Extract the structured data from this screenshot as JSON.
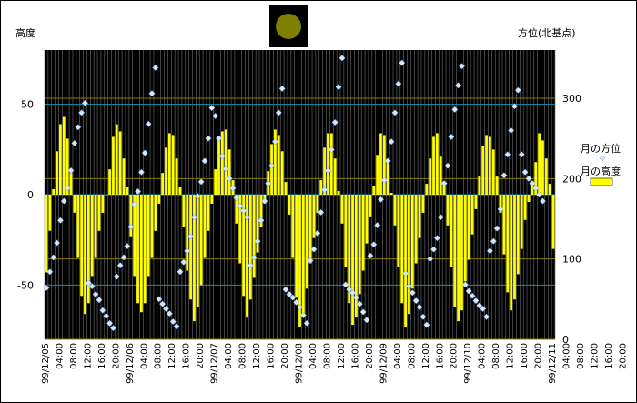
{
  "chart_data": {
    "type": "bar+scatter",
    "ylabel_left": "高度",
    "ylabel_right": "方位(北基点)",
    "left_ticks": [
      "50",
      "0",
      "-50"
    ],
    "right_ticks": [
      "300",
      "200",
      "100",
      "0"
    ],
    "ylim_left": [
      -80,
      80
    ],
    "ylim_right": [
      0,
      360
    ],
    "legend_placement": "right",
    "series": [
      {
        "name": "月の方位",
        "kind": "scatter",
        "color": "#cfe7ff",
        "axis": "right",
        "values": [
          64,
          84,
          102,
          120,
          148,
          172,
          188,
          210,
          244,
          264,
          282,
          294,
          70,
          66,
          56,
          49,
          36,
          29,
          20,
          14,
          78,
          92,
          102,
          116,
          140,
          168,
          184,
          208,
          232,
          268,
          306,
          338,
          50,
          44,
          38,
          32,
          22,
          16,
          84,
          96,
          110,
          128,
          152,
          178,
          196,
          222,
          250,
          288,
          278,
          250,
          228,
          212,
          200,
          188,
          176,
          166,
          160,
          152,
          92,
          102,
          122,
          148,
          172,
          194,
          216,
          246,
          282,
          312,
          62,
          56,
          52,
          46,
          40,
          30,
          20,
          98,
          112,
          132,
          158,
          186,
          210,
          236,
          270,
          314,
          350,
          68,
          62,
          58,
          52,
          44,
          34,
          24,
          104,
          118,
          142,
          174,
          198,
          222,
          246,
          282,
          318,
          344,
          82,
          66,
          58,
          48,
          40,
          28,
          18,
          100,
          112,
          126,
          152,
          194,
          216,
          252,
          286,
          316,
          340,
          68,
          60,
          54,
          48,
          42,
          38,
          28,
          110,
          122,
          138,
          162,
          204,
          230,
          260,
          290,
          310,
          230,
          208,
          200,
          194,
          188,
          180,
          172
        ]
      },
      {
        "name": "月の高度",
        "kind": "bar",
        "color": "#ffff00",
        "axis": "left",
        "values": [
          -43,
          -20,
          3,
          24,
          39,
          43,
          31,
          12,
          -10,
          -35,
          -56,
          -66,
          -60,
          -45,
          -35,
          -20,
          -10,
          0,
          14,
          32,
          39,
          35,
          20,
          4,
          -23,
          -45,
          -60,
          -65,
          -60,
          -45,
          -35,
          -20,
          -5,
          12,
          26,
          34,
          33,
          20,
          4,
          -18,
          -42,
          -58,
          -70,
          -62,
          -50,
          -35,
          -20,
          -5,
          14,
          30,
          35,
          36,
          25,
          8,
          -16,
          -38,
          -56,
          -68,
          -58,
          -46,
          -32,
          -18,
          -5,
          13,
          28,
          36,
          33,
          24,
          7,
          -11,
          -35,
          -57,
          -73,
          -66,
          -52,
          -38,
          -24,
          -10,
          8,
          26,
          34,
          34,
          20,
          2,
          -16,
          -40,
          -60,
          -72,
          -68,
          -55,
          -42,
          -27,
          -12,
          5,
          22,
          34,
          33,
          18,
          1,
          -17,
          -40,
          -60,
          -73,
          -66,
          -52,
          -38,
          -24,
          -10,
          6,
          20,
          32,
          34,
          21,
          5,
          -17,
          -40,
          -62,
          -70,
          -64,
          -48,
          -36,
          -22,
          -8,
          10,
          27,
          33,
          32,
          25,
          10,
          -10,
          -33,
          -54,
          -64,
          -58,
          -44,
          -30,
          -14,
          -4,
          5,
          18,
          34,
          30,
          20,
          6,
          -30
        ]
      }
    ],
    "x_tick_labels": [
      "99/12/05",
      "04:00",
      "08:00",
      "12:00",
      "16:00",
      "20:00",
      "99/12/06",
      "04:00",
      "08:00",
      "12:00",
      "16:00",
      "20:00",
      "99/12/07",
      "04:00",
      "08:00",
      "12:00",
      "16:00",
      "20:00",
      "99/12/08",
      "04:00",
      "08:00",
      "12:00",
      "16:00",
      "20:00",
      "99/12/09",
      "04:00",
      "08:00",
      "12:00",
      "16:00",
      "20:00",
      "99/12/10",
      "04:00",
      "08:00",
      "12:00",
      "16:00",
      "20:00",
      "99/12/11",
      "04:00",
      "08:00",
      "12:00",
      "16:00",
      "20:00"
    ],
    "grid": true
  }
}
